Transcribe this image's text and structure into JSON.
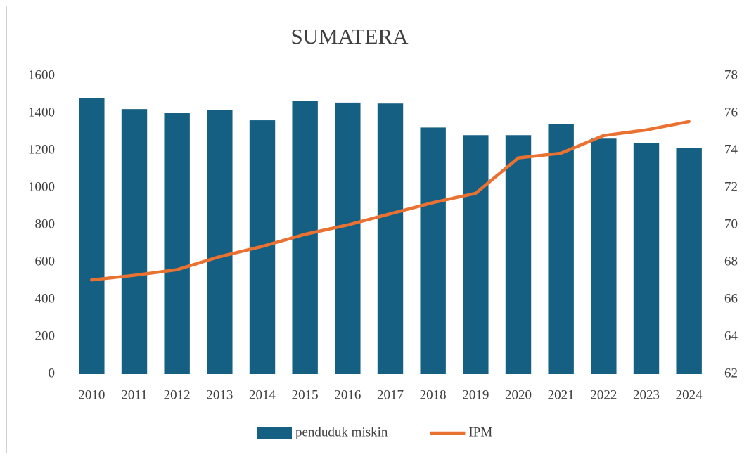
{
  "chart_data": {
    "type": "combo",
    "title": "SUMATERA",
    "categories": [
      "2010",
      "2011",
      "2012",
      "2013",
      "2014",
      "2015",
      "2016",
      "2017",
      "2018",
      "2019",
      "2020",
      "2021",
      "2022",
      "2023",
      "2024"
    ],
    "series": [
      {
        "name": "penduduk miskin",
        "type": "bar",
        "color": "#156082",
        "values": [
          1480,
          1422,
          1400,
          1418,
          1362,
          1465,
          1457,
          1452,
          1323,
          1282,
          1282,
          1342,
          1267,
          1240,
          1213
        ]
      },
      {
        "name": "IPM",
        "type": "line",
        "axis": "y2",
        "color": "#e97132",
        "values": [
          67.05,
          67.3,
          67.6,
          68.3,
          68.85,
          69.5,
          70.0,
          70.6,
          71.2,
          71.7,
          73.6,
          73.85,
          74.8,
          75.1,
          75.55
        ]
      }
    ],
    "ylim": [
      0,
      1600
    ],
    "yticks": [
      0,
      200,
      400,
      600,
      800,
      1000,
      1200,
      1400,
      1600
    ],
    "y2lim": [
      62,
      78
    ],
    "y2ticks": [
      62,
      64,
      66,
      68,
      70,
      72,
      74,
      76,
      78
    ],
    "legend": "bottom"
  }
}
